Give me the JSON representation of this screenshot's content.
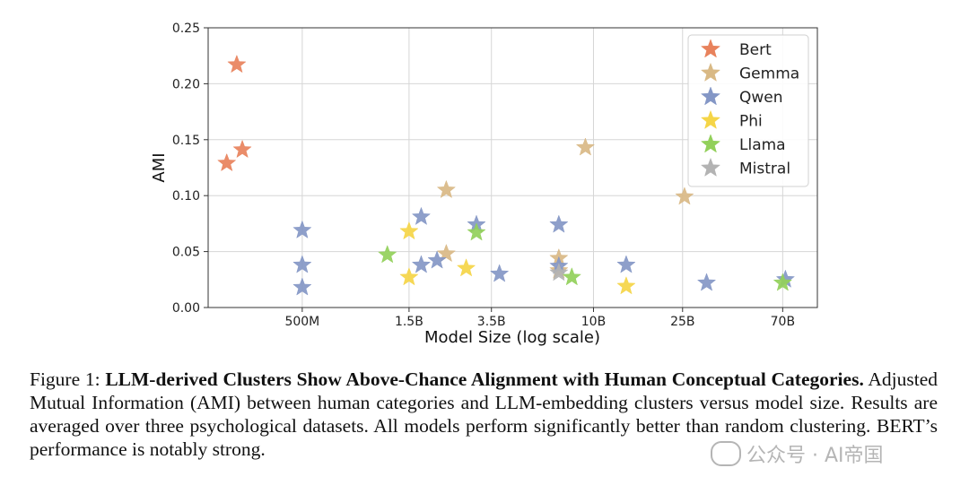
{
  "chart_data": {
    "type": "scatter",
    "marker": "star",
    "title": "",
    "xlabel": "Model Size (log scale)",
    "ylabel": "AMI",
    "x_scale": "log",
    "xlim_params_B": [
      0.19,
      100
    ],
    "ylim": [
      0.0,
      0.25
    ],
    "x_ticks": [
      {
        "value": 0.5,
        "label": "500M"
      },
      {
        "value": 1.5,
        "label": "1.5B"
      },
      {
        "value": 3.5,
        "label": "3.5B"
      },
      {
        "value": 10,
        "label": "10B"
      },
      {
        "value": 25,
        "label": "25B"
      },
      {
        "value": 70,
        "label": "70B"
      }
    ],
    "y_ticks": [
      {
        "value": 0.0,
        "label": "0.00"
      },
      {
        "value": 0.05,
        "label": "0.05"
      },
      {
        "value": 0.1,
        "label": "0.10"
      },
      {
        "value": 0.15,
        "label": "0.15"
      },
      {
        "value": 0.2,
        "label": "0.20"
      },
      {
        "value": 0.25,
        "label": "0.25"
      }
    ],
    "grid": true,
    "legend_position": "top-right",
    "series": [
      {
        "name": "Bert",
        "color": "#e8825c",
        "points": [
          {
            "x": 0.255,
            "y": 0.217
          },
          {
            "x": 0.23,
            "y": 0.129
          },
          {
            "x": 0.27,
            "y": 0.141
          }
        ]
      },
      {
        "name": "Gemma",
        "color": "#d9b985",
        "points": [
          {
            "x": 2.2,
            "y": 0.105
          },
          {
            "x": 2.2,
            "y": 0.048
          },
          {
            "x": 9.2,
            "y": 0.143
          },
          {
            "x": 25.5,
            "y": 0.099
          },
          {
            "x": 7.0,
            "y": 0.044
          },
          {
            "x": 7.0,
            "y": 0.033
          }
        ]
      },
      {
        "name": "Qwen",
        "color": "#8497c6",
        "points": [
          {
            "x": 0.5,
            "y": 0.069
          },
          {
            "x": 0.5,
            "y": 0.038
          },
          {
            "x": 0.5,
            "y": 0.018
          },
          {
            "x": 1.7,
            "y": 0.081
          },
          {
            "x": 1.7,
            "y": 0.038
          },
          {
            "x": 2.0,
            "y": 0.042
          },
          {
            "x": 3.0,
            "y": 0.074
          },
          {
            "x": 3.8,
            "y": 0.03
          },
          {
            "x": 7.0,
            "y": 0.074
          },
          {
            "x": 7.0,
            "y": 0.037
          },
          {
            "x": 14.0,
            "y": 0.038
          },
          {
            "x": 32.0,
            "y": 0.022
          },
          {
            "x": 72.0,
            "y": 0.025
          }
        ]
      },
      {
        "name": "Phi",
        "color": "#f5d547",
        "points": [
          {
            "x": 1.5,
            "y": 0.068
          },
          {
            "x": 1.5,
            "y": 0.027
          },
          {
            "x": 2.7,
            "y": 0.035
          },
          {
            "x": 14.0,
            "y": 0.019
          }
        ]
      },
      {
        "name": "Llama",
        "color": "#92d05a",
        "points": [
          {
            "x": 1.2,
            "y": 0.047
          },
          {
            "x": 3.0,
            "y": 0.067
          },
          {
            "x": 8.0,
            "y": 0.027
          },
          {
            "x": 70.0,
            "y": 0.022
          }
        ]
      },
      {
        "name": "Mistral",
        "color": "#b3b3b3",
        "points": [
          {
            "x": 7.0,
            "y": 0.031
          }
        ]
      }
    ]
  },
  "caption": {
    "figure_label": "Figure 1:",
    "bold_title": "LLM-derived Clusters Show Above-Chance Alignment with Human Conceptual Categories.",
    "body": "Adjusted Mutual Information (AMI) between human categories and LLM-embedding clusters versus model size. Results are averaged over three psychological datasets. All models perform significantly better than random clustering. BERT’s performance is notably strong."
  },
  "watermark": {
    "text": "公众号 · AI帝国"
  }
}
